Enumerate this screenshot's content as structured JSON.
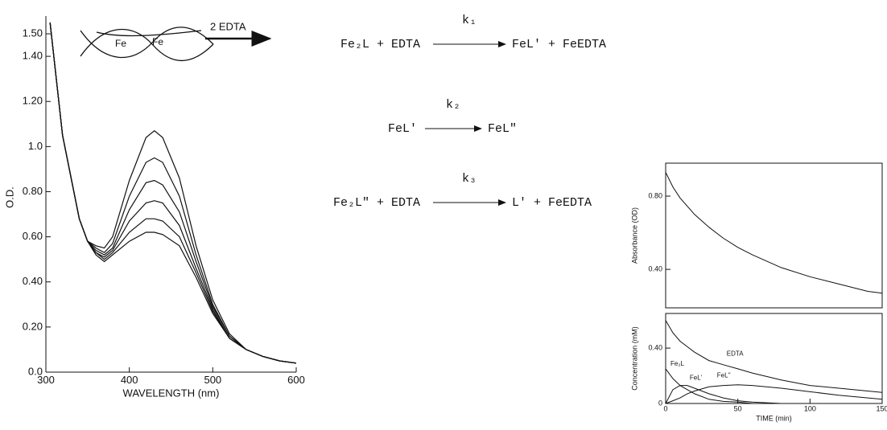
{
  "chart_data": [
    {
      "type": "line",
      "x_label": "WAVELENGTH (nm)",
      "y_label": "O.D.",
      "annotations": [
        "2 EDTA",
        "Fe",
        "Fe"
      ],
      "x": [
        305,
        320,
        340,
        350,
        360,
        370,
        380,
        400,
        420,
        430,
        440,
        460,
        480,
        500,
        520,
        540,
        560,
        580,
        600
      ],
      "xlim": [
        300,
        600
      ],
      "xticks": [
        300,
        400,
        500,
        600
      ],
      "ylim": [
        0,
        1.55
      ],
      "yticks": [
        {
          "value": 0,
          "label": "0.0"
        },
        {
          "value": 0.2,
          "label": "0.20"
        },
        {
          "value": 0.4,
          "label": "0.40"
        },
        {
          "value": 0.6,
          "label": "0.60"
        },
        {
          "value": 0.8,
          "label": "0.80"
        },
        {
          "value": 1,
          "label": "1.0"
        },
        {
          "value": 1.2,
          "label": "1.20"
        },
        {
          "value": 1.4,
          "label": "1.40"
        },
        {
          "value": 1.5,
          "label": "1.50"
        }
      ],
      "series": [
        {
          "color": "#111",
          "values": [
            1.55,
            1.05,
            0.68,
            0.58,
            0.56,
            0.55,
            0.6,
            0.85,
            1.04,
            1.07,
            1.04,
            0.86,
            0.56,
            0.32,
            0.17,
            0.1,
            0.07,
            0.05,
            0.04
          ]
        },
        {
          "color": "#111",
          "values": [
            1.55,
            1.05,
            0.68,
            0.58,
            0.55,
            0.53,
            0.57,
            0.78,
            0.93,
            0.95,
            0.93,
            0.78,
            0.52,
            0.3,
            0.16,
            0.1,
            0.07,
            0.05,
            0.04
          ]
        },
        {
          "color": "#111",
          "values": [
            1.55,
            1.05,
            0.68,
            0.58,
            0.54,
            0.52,
            0.55,
            0.72,
            0.84,
            0.85,
            0.83,
            0.71,
            0.49,
            0.29,
            0.16,
            0.1,
            0.07,
            0.05,
            0.04
          ]
        },
        {
          "color": "#111",
          "values": [
            1.55,
            1.05,
            0.68,
            0.58,
            0.53,
            0.51,
            0.54,
            0.67,
            0.75,
            0.76,
            0.75,
            0.65,
            0.46,
            0.28,
            0.15,
            0.1,
            0.07,
            0.05,
            0.04
          ]
        },
        {
          "color": "#111",
          "values": [
            1.55,
            1.05,
            0.68,
            0.58,
            0.53,
            0.5,
            0.53,
            0.62,
            0.68,
            0.68,
            0.67,
            0.6,
            0.44,
            0.27,
            0.15,
            0.1,
            0.07,
            0.05,
            0.04
          ]
        },
        {
          "color": "#111",
          "values": [
            1.55,
            1.05,
            0.68,
            0.58,
            0.52,
            0.49,
            0.52,
            0.58,
            0.62,
            0.62,
            0.61,
            0.56,
            0.42,
            0.26,
            0.15,
            0.1,
            0.07,
            0.05,
            0.04
          ]
        }
      ]
    },
    {
      "type": "line",
      "y_label": "Absorbance (OD)",
      "x": [
        0,
        5,
        10,
        20,
        30,
        40,
        50,
        60,
        80,
        100,
        120,
        140,
        150
      ],
      "xlim": [
        0,
        150
      ],
      "ylim": [
        0.19,
        0.98
      ],
      "yticks": [
        {
          "value": 0.4,
          "label": "0.40"
        },
        {
          "value": 0.8,
          "label": "0.80"
        }
      ],
      "series": [
        {
          "color": "#111",
          "values": [
            0.93,
            0.85,
            0.79,
            0.7,
            0.63,
            0.57,
            0.52,
            0.48,
            0.41,
            0.36,
            0.32,
            0.28,
            0.27
          ]
        }
      ]
    },
    {
      "type": "line",
      "x_label": "TIME (min)",
      "y_label": "Concentration (mM)",
      "x": [
        0,
        5,
        10,
        15,
        20,
        30,
        40,
        50,
        60,
        80,
        100,
        120,
        150
      ],
      "xlim": [
        0,
        150
      ],
      "xticks": [
        0,
        50,
        100,
        150
      ],
      "ylim": [
        0,
        0.65
      ],
      "yticks": [
        0,
        {
          "value": 0.4,
          "label": "0.40"
        }
      ],
      "series": [
        {
          "name": "EDTA",
          "color": "#111",
          "values": [
            0.6,
            0.51,
            0.45,
            0.41,
            0.37,
            0.31,
            0.28,
            0.25,
            0.22,
            0.17,
            0.13,
            0.11,
            0.08
          ]
        },
        {
          "name": "Fe₂L",
          "color": "#111",
          "values": [
            0.25,
            0.18,
            0.13,
            0.1,
            0.07,
            0.03,
            0.015,
            0.01,
            0,
            0,
            0,
            0,
            0
          ]
        },
        {
          "name": "FeL'",
          "color": "#111",
          "values": [
            0,
            0.1,
            0.13,
            0.13,
            0.11,
            0.07,
            0.04,
            0.02,
            0.01,
            0,
            0,
            0,
            0
          ]
        },
        {
          "name": "FeL''",
          "color": "#111",
          "values": [
            0,
            0.02,
            0.04,
            0.07,
            0.09,
            0.12,
            0.13,
            0.135,
            0.13,
            0.11,
            0.085,
            0.06,
            0.03
          ]
        }
      ]
    }
  ],
  "scheme": [
    {
      "left": "Fe₂L + EDTA",
      "k": "k₁",
      "right": "FeL' + FeEDTA"
    },
    {
      "left": "FeL'",
      "k": "k₂",
      "right": "FeL\""
    },
    {
      "left": "Fe₂L\" + EDTA",
      "k": "k₃",
      "right": "L' + FeEDTA"
    }
  ]
}
